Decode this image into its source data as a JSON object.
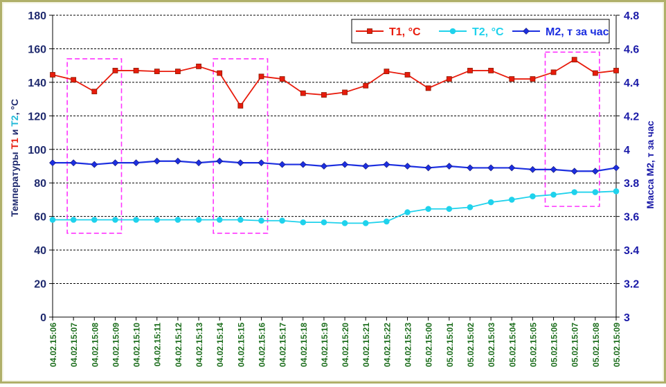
{
  "chart_data": {
    "type": "line",
    "title": "",
    "categories": [
      "04.02.15:06",
      "04.02.15:07",
      "04.02.15:08",
      "04.02.15:09",
      "04.02.15:10",
      "04.02.15:11",
      "04.02.15:12",
      "04.02.15:13",
      "04.02.15:14",
      "04.02.15:15",
      "04.02.15:16",
      "04.02.15:17",
      "04.02.15:18",
      "04.02.15:19",
      "04.02.15:20",
      "04.02.15:21",
      "04.02.15:22",
      "04.02.15:23",
      "05.02.15:00",
      "05.02.15:01",
      "05.02.15:02",
      "05.02.15:03",
      "05.02.15:04",
      "05.02.15:05",
      "05.02.15:06",
      "05.02.15:07",
      "05.02.15:08",
      "05.02.15:09"
    ],
    "ylabel_left": {
      "prefix": "Температуры ",
      "t1": "T1",
      "middle": " и ",
      "t2": "T2",
      "suffix": ", °C"
    },
    "ylabel_right": "Масса М2, т за час",
    "ylim_left": [
      0,
      180
    ],
    "ylim_right": [
      3,
      4.8
    ],
    "yticks_left": [
      0,
      20,
      40,
      60,
      80,
      100,
      120,
      140,
      160,
      180
    ],
    "yticks_right": [
      3,
      3.2,
      3.4,
      3.6,
      3.8,
      4,
      4.2,
      4.4,
      4.6,
      4.8
    ],
    "grid": "horizontal dotted",
    "legend_position": "top-right",
    "series": [
      {
        "name": "T1, °C",
        "axis": "left",
        "color": "#e81b0c",
        "marker": "square",
        "values": [
          144.5,
          141.5,
          134.5,
          147,
          147,
          146.5,
          146.5,
          149.5,
          145.5,
          126,
          143.5,
          142,
          133.5,
          132.5,
          134,
          138,
          146.5,
          144.5,
          136.5,
          142,
          147,
          147,
          142,
          142,
          146,
          153.5,
          145.5,
          147
        ]
      },
      {
        "name": "T2, °C",
        "axis": "left",
        "color": "#1fd2ec",
        "marker": "circle",
        "values": [
          58,
          58,
          58,
          58,
          58,
          58,
          58,
          58,
          58,
          58,
          57.5,
          57.5,
          56.5,
          56.5,
          56,
          56,
          57,
          62.5,
          64.5,
          64.5,
          65.5,
          68.5,
          70,
          72,
          73,
          74.5,
          74.5,
          75
        ]
      },
      {
        "name": "М2, т за час",
        "axis": "right",
        "color": "#1c2fe0",
        "marker": "diamond",
        "values": [
          3.92,
          3.92,
          3.91,
          3.92,
          3.92,
          3.93,
          3.93,
          3.92,
          3.93,
          3.92,
          3.92,
          3.91,
          3.91,
          3.9,
          3.91,
          3.9,
          3.91,
          3.9,
          3.89,
          3.9,
          3.89,
          3.89,
          3.89,
          3.88,
          3.88,
          3.87,
          3.87,
          3.89
        ]
      }
    ],
    "annotations": [
      {
        "type": "dashed-box",
        "color": "#ff33ff",
        "x_from": 0.7,
        "x_to": 3.3,
        "y_from": 50,
        "y_to": 154
      },
      {
        "type": "dashed-box",
        "color": "#ff33ff",
        "x_from": 7.7,
        "x_to": 10.3,
        "y_from": 50,
        "y_to": 154
      },
      {
        "type": "dashed-box",
        "color": "#ff33ff",
        "x_from": 23.6,
        "x_to": 26.2,
        "y_from": 66,
        "y_to": 158
      }
    ]
  },
  "colors": {
    "frame_border": "#b0b06a",
    "frame_bg": "#f5f5d6",
    "axis_left_labels": "#1f2a6e",
    "axis_right_labels": "#1a1aa8",
    "x_labels": "#1d6e1d",
    "box_dash": "#ff33ff"
  }
}
